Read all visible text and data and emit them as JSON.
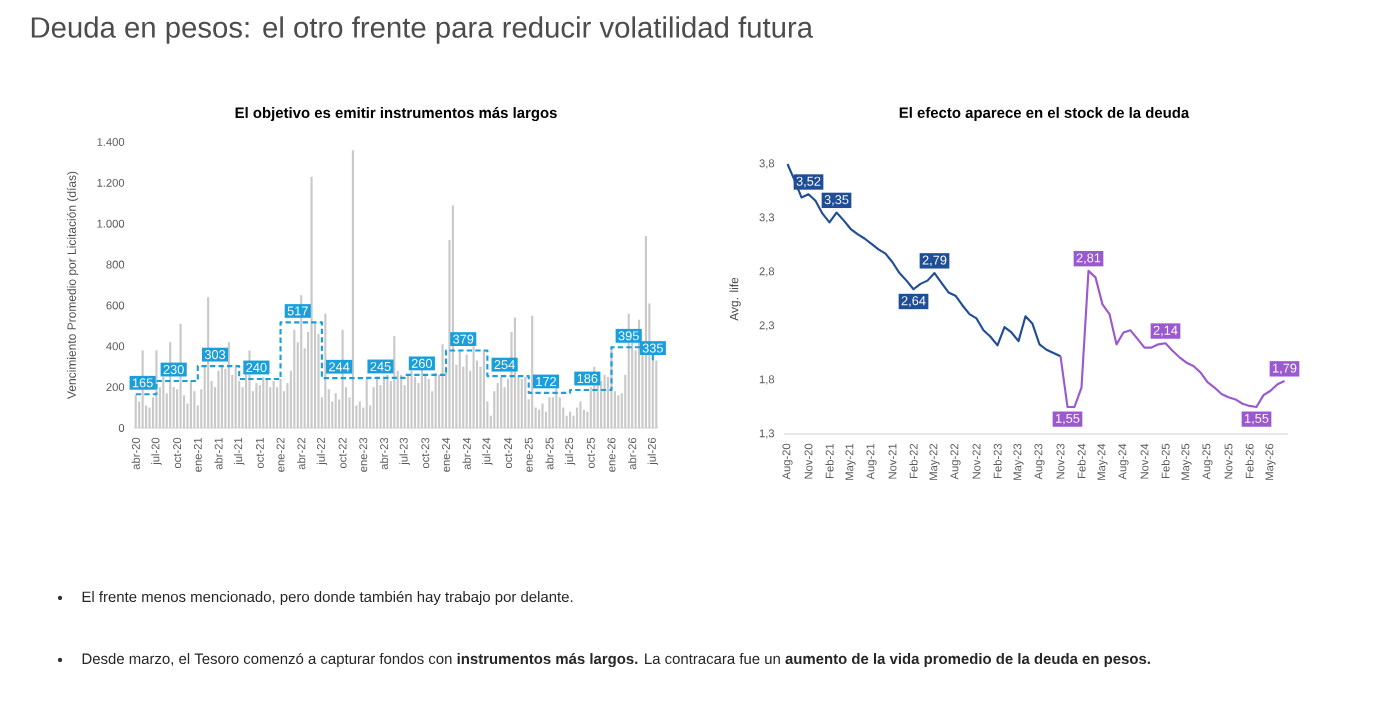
{
  "chart_data": [
    {
      "type": "bar",
      "title": "El objetivo es emitir instrumentos más largos",
      "ylabel": "Vencimiento Promedio por Licitación (días)",
      "categories": [
        "abr-20",
        null,
        null,
        null,
        null,
        null,
        "jul-20",
        null,
        null,
        null,
        null,
        null,
        "oct-20",
        null,
        null,
        null,
        null,
        null,
        "ene-21",
        null,
        null,
        null,
        null,
        null,
        "abr-21",
        null,
        null,
        null,
        null,
        null,
        "jul-21",
        null,
        null,
        null,
        null,
        null,
        "oct-21",
        null,
        null,
        null,
        null,
        null,
        "ene-22",
        null,
        null,
        null,
        null,
        null,
        "abr-22",
        null,
        null,
        null,
        null,
        null,
        "jul-22",
        null,
        null,
        null,
        null,
        null,
        "oct-22",
        null,
        null,
        null,
        null,
        null,
        "ene-23",
        null,
        null,
        null,
        null,
        null,
        "abr-23",
        null,
        null,
        null,
        null,
        null,
        "jul-23",
        null,
        null,
        null,
        null,
        null,
        "oct-23",
        null,
        null,
        null,
        null,
        null,
        "ene-24",
        null,
        null,
        null,
        null,
        null,
        "abr-24",
        null,
        null,
        null,
        null,
        null,
        "jul-24",
        null,
        null,
        null,
        null,
        null,
        "oct-24",
        null,
        null,
        null,
        null,
        null,
        "ene-25",
        null,
        null,
        null,
        null,
        null,
        "abr-25",
        null,
        null,
        null,
        null,
        null,
        "jul-25",
        null,
        null,
        null,
        null,
        null,
        "oct-25",
        null,
        null,
        null,
        null,
        null,
        "ene-26",
        null,
        null,
        null,
        null,
        null,
        "abr-26",
        null,
        null,
        null,
        null,
        null,
        "jul-26",
        null
      ],
      "ylim": [
        0,
        1400
      ],
      "yticks": [
        0,
        200,
        400,
        600,
        800,
        {
          "value": 1000,
          "label": "1.000"
        },
        {
          "value": 1200,
          "label": "1.200"
        },
        {
          "value": 1400,
          "label": "1.400"
        }
      ],
      "series": [
        {
          "type": "bar",
          "color": "#c9c9c9",
          "values": [
            160,
            130,
            380,
            110,
            100,
            150,
            380,
            200,
            250,
            170,
            420,
            200,
            190,
            510,
            160,
            120,
            230,
            180,
            110,
            190,
            300,
            640,
            230,
            200,
            280,
            310,
            290,
            420,
            260,
            300,
            230,
            200,
            280,
            380,
            180,
            220,
            210,
            250,
            240,
            200,
            230,
            200,
            240,
            180,
            220,
            280,
            480,
            420,
            650,
            390,
            470,
            1230,
            520,
            460,
            150,
            560,
            190,
            130,
            170,
            140,
            480,
            200,
            150,
            1360,
            110,
            130,
            100,
            240,
            110,
            200,
            250,
            210,
            240,
            260,
            230,
            450,
            280,
            260,
            210,
            260,
            280,
            250,
            220,
            300,
            260,
            240,
            180,
            270,
            260,
            410,
            300,
            920,
            1090,
            310,
            380,
            300,
            360,
            280,
            400,
            330,
            300,
            380,
            130,
            60,
            180,
            220,
            250,
            200,
            240,
            470,
            540,
            250,
            240,
            250,
            140,
            550,
            100,
            90,
            120,
            80,
            150,
            150,
            200,
            150,
            100,
            60,
            80,
            60,
            100,
            130,
            90,
            80,
            200,
            300,
            250,
            230,
            260,
            250,
            400,
            180,
            160,
            170,
            260,
            560,
            420,
            380,
            530,
            400,
            940,
            610,
            340,
            330
          ]
        },
        {
          "type": "step",
          "color": "#1a9fdc",
          "line_style": "dashed",
          "values": [
            165,
            165,
            165,
            165,
            165,
            165,
            230,
            230,
            230,
            230,
            230,
            230,
            230,
            230,
            230,
            230,
            230,
            230,
            303,
            303,
            303,
            303,
            303,
            303,
            303,
            303,
            303,
            303,
            303,
            303,
            240,
            240,
            240,
            240,
            240,
            240,
            240,
            240,
            240,
            240,
            240,
            240,
            517,
            517,
            517,
            517,
            517,
            517,
            517,
            517,
            517,
            517,
            517,
            517,
            244,
            244,
            244,
            244,
            244,
            244,
            244,
            244,
            244,
            244,
            244,
            244,
            245,
            245,
            245,
            245,
            245,
            245,
            245,
            245,
            245,
            245,
            245,
            245,
            260,
            260,
            260,
            260,
            260,
            260,
            260,
            260,
            260,
            260,
            260,
            260,
            379,
            379,
            379,
            379,
            379,
            379,
            379,
            379,
            379,
            379,
            379,
            379,
            254,
            254,
            254,
            254,
            254,
            254,
            254,
            254,
            254,
            254,
            254,
            254,
            172,
            172,
            172,
            172,
            172,
            172,
            172,
            172,
            172,
            172,
            172,
            172,
            186,
            186,
            186,
            186,
            186,
            186,
            186,
            186,
            186,
            186,
            186,
            186,
            395,
            395,
            395,
            395,
            395,
            395,
            395,
            395,
            395,
            395,
            395,
            395,
            335,
            335
          ],
          "value_labels": [
            null,
            null,
            "165",
            null,
            null,
            null,
            null,
            null,
            null,
            null,
            null,
            "230",
            null,
            null,
            null,
            null,
            null,
            null,
            null,
            null,
            null,
            null,
            null,
            "303",
            null,
            null,
            null,
            null,
            null,
            null,
            null,
            null,
            null,
            null,
            null,
            "240",
            null,
            null,
            null,
            null,
            null,
            null,
            null,
            null,
            null,
            null,
            null,
            "517",
            null,
            null,
            null,
            null,
            null,
            null,
            null,
            null,
            null,
            null,
            null,
            "244",
            null,
            null,
            null,
            null,
            null,
            null,
            null,
            null,
            null,
            null,
            null,
            "245",
            null,
            null,
            null,
            null,
            null,
            null,
            null,
            null,
            null,
            null,
            null,
            "260",
            null,
            null,
            null,
            null,
            null,
            null,
            null,
            null,
            null,
            null,
            null,
            "379",
            null,
            null,
            null,
            null,
            null,
            null,
            null,
            null,
            null,
            null,
            null,
            "254",
            null,
            null,
            null,
            null,
            null,
            null,
            null,
            null,
            null,
            null,
            null,
            "172",
            null,
            null,
            null,
            null,
            null,
            null,
            null,
            null,
            null,
            null,
            null,
            "186",
            null,
            null,
            null,
            null,
            null,
            null,
            null,
            null,
            null,
            null,
            null,
            "395",
            null,
            null,
            null,
            null,
            null,
            null,
            "335",
            null
          ]
        }
      ]
    },
    {
      "type": "line",
      "title": "El efecto aparece en el stock de la deuda",
      "ylabel": "Avg. life",
      "categories": [
        "Aug-20",
        null,
        null,
        "Nov-20",
        null,
        null,
        "Feb-21",
        null,
        null,
        "May-21",
        null,
        null,
        "Aug-21",
        null,
        null,
        "Nov-21",
        null,
        null,
        "Feb-22",
        null,
        null,
        "May-22",
        null,
        null,
        "Aug-22",
        null,
        null,
        "Nov-22",
        null,
        null,
        "Feb-23",
        null,
        null,
        "May-23",
        null,
        null,
        "Aug-23",
        null,
        null,
        "Nov-23",
        null,
        null,
        "Feb-24",
        null,
        null,
        "May-24",
        null,
        null,
        "Aug-24",
        null,
        null,
        "Nov-24",
        null,
        null,
        "Feb-25",
        null,
        null,
        "May-25",
        null,
        null,
        "Aug-25",
        null,
        null,
        "Nov-25",
        null,
        null,
        "Feb-26",
        null,
        null,
        "May-26",
        null,
        null
      ],
      "ylim": [
        1.3,
        3.8
      ],
      "yticks": [
        {
          "value": 1.3,
          "label": "1,3"
        },
        {
          "value": 1.8,
          "label": "1,8"
        },
        {
          "value": 2.3,
          "label": "2,3"
        },
        {
          "value": 2.8,
          "label": "2,8"
        },
        {
          "value": 3.3,
          "label": "3,3"
        },
        {
          "value": 3.8,
          "label": "3,8"
        }
      ],
      "series": [
        {
          "color": "#1f4e96",
          "values": [
            3.8,
            3.65,
            3.49,
            3.52,
            3.46,
            3.34,
            3.26,
            3.35,
            3.28,
            3.2,
            3.15,
            3.11,
            3.06,
            3.01,
            2.97,
            2.89,
            2.79,
            2.72,
            2.64,
            2.69,
            2.72,
            2.79,
            2.7,
            2.61,
            2.58,
            2.49,
            2.41,
            2.37,
            2.26,
            2.2,
            2.12,
            2.29,
            2.24,
            2.16,
            2.39,
            2.32,
            2.13,
            2.08,
            2.05,
            2.02,
            null,
            null,
            null,
            null,
            null,
            null,
            null,
            null,
            null,
            null,
            null,
            null,
            null,
            null,
            null,
            null,
            null,
            null,
            null,
            null,
            null,
            null,
            null,
            null,
            null,
            null,
            null,
            null,
            null,
            null,
            null,
            null
          ],
          "value_labels": [
            null,
            null,
            null,
            "3,52",
            null,
            null,
            null,
            "3,35",
            null,
            null,
            null,
            null,
            null,
            null,
            null,
            null,
            null,
            null,
            "2,64",
            null,
            null,
            "2,79",
            null,
            null,
            null,
            null,
            null,
            null,
            null,
            null,
            null,
            null,
            null,
            null,
            null,
            null,
            null,
            null,
            null,
            null,
            null,
            null,
            null,
            null,
            null,
            null,
            null,
            null,
            null,
            null,
            null,
            null,
            null,
            null,
            null,
            null,
            null,
            null,
            null,
            null,
            null,
            null,
            null,
            null,
            null,
            null,
            null,
            null,
            null,
            null,
            null,
            null
          ]
        },
        {
          "color": "#9b59d0",
          "values": [
            null,
            null,
            null,
            null,
            null,
            null,
            null,
            null,
            null,
            null,
            null,
            null,
            null,
            null,
            null,
            null,
            null,
            null,
            null,
            null,
            null,
            null,
            null,
            null,
            null,
            null,
            null,
            null,
            null,
            null,
            null,
            null,
            null,
            null,
            null,
            null,
            null,
            null,
            null,
            2.02,
            1.55,
            1.55,
            1.73,
            2.81,
            2.75,
            2.5,
            2.41,
            2.13,
            2.24,
            2.26,
            2.18,
            2.1,
            2.1,
            2.13,
            2.14,
            2.07,
            2.01,
            1.96,
            1.93,
            1.87,
            1.78,
            1.73,
            1.67,
            1.64,
            1.62,
            1.58,
            1.56,
            1.55,
            1.66,
            1.7,
            1.76,
            1.79
          ],
          "value_labels": [
            null,
            null,
            null,
            null,
            null,
            null,
            null,
            null,
            null,
            null,
            null,
            null,
            null,
            null,
            null,
            null,
            null,
            null,
            null,
            null,
            null,
            null,
            null,
            null,
            null,
            null,
            null,
            null,
            null,
            null,
            null,
            null,
            null,
            null,
            null,
            null,
            null,
            null,
            null,
            null,
            "1,55",
            null,
            null,
            "2,81",
            null,
            null,
            null,
            null,
            null,
            null,
            null,
            null,
            null,
            null,
            "2,14",
            null,
            null,
            null,
            null,
            null,
            null,
            null,
            null,
            null,
            null,
            null,
            null,
            "1,55",
            null,
            null,
            null,
            "1,79"
          ]
        }
      ]
    },
    {
      "type": "other",
      "title": "Deuda en pesos: el otro frente para reducir volatilidad futura",
      "annotations": [
        "El frente menos mencionado, pero donde también hay trabajo por delante.",
        "Desde marzo, el Tesoro comenzó a capturar fondos con **instrumentos más largos.** La contracara fue un **aumento de la vida promedio de la deuda en pesos.**"
      ]
    }
  ]
}
